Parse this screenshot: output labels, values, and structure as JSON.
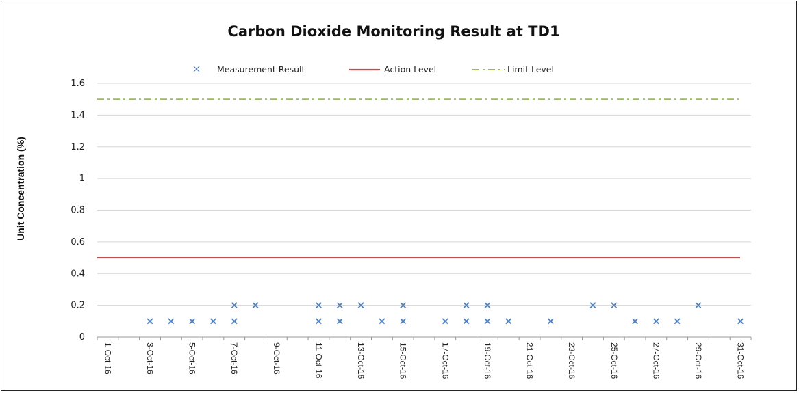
{
  "chart_data": {
    "type": "scatter",
    "title": "Carbon Dioxide Monitoring Result at TD1",
    "xlabel": "",
    "ylabel": "Unit Concentration (%)",
    "ylim": [
      0,
      1.6
    ],
    "yticks": [
      "0",
      "0.2",
      "0.4",
      "0.6",
      "0.8",
      "1",
      "1.2",
      "1.4",
      "1.6"
    ],
    "xlim": [
      "1-Oct-16",
      "31-Oct-16"
    ],
    "xticks": [
      "1-Oct-16",
      "3-Oct-16",
      "5-Oct-16",
      "7-Oct-16",
      "9-Oct-16",
      "11-Oct-16",
      "13-Oct-16",
      "15-Oct-16",
      "17-Oct-16",
      "19-Oct-16",
      "21-Oct-16",
      "23-Oct-16",
      "25-Oct-16",
      "27-Oct-16",
      "29-Oct-16",
      "31-Oct-16"
    ],
    "grid": "horizontal",
    "legend_position": "top",
    "series": [
      {
        "name": "Measurement Result",
        "kind": "scatter",
        "marker": "x",
        "color": "#4f81bd",
        "points": [
          {
            "x": "3-Oct-16",
            "y": 0.1
          },
          {
            "x": "4-Oct-16",
            "y": 0.1
          },
          {
            "x": "5-Oct-16",
            "y": 0.1
          },
          {
            "x": "6-Oct-16",
            "y": 0.1
          },
          {
            "x": "7-Oct-16",
            "y": 0.1
          },
          {
            "x": "7-Oct-16",
            "y": 0.2
          },
          {
            "x": "8-Oct-16",
            "y": 0.2
          },
          {
            "x": "11-Oct-16",
            "y": 0.1
          },
          {
            "x": "11-Oct-16",
            "y": 0.2
          },
          {
            "x": "12-Oct-16",
            "y": 0.1
          },
          {
            "x": "12-Oct-16",
            "y": 0.2
          },
          {
            "x": "13-Oct-16",
            "y": 0.2
          },
          {
            "x": "14-Oct-16",
            "y": 0.1
          },
          {
            "x": "15-Oct-16",
            "y": 0.1
          },
          {
            "x": "15-Oct-16",
            "y": 0.2
          },
          {
            "x": "17-Oct-16",
            "y": 0.1
          },
          {
            "x": "18-Oct-16",
            "y": 0.1
          },
          {
            "x": "18-Oct-16",
            "y": 0.2
          },
          {
            "x": "19-Oct-16",
            "y": 0.1
          },
          {
            "x": "19-Oct-16",
            "y": 0.2
          },
          {
            "x": "20-Oct-16",
            "y": 0.1
          },
          {
            "x": "22-Oct-16",
            "y": 0.1
          },
          {
            "x": "24-Oct-16",
            "y": 0.2
          },
          {
            "x": "25-Oct-16",
            "y": 0.2
          },
          {
            "x": "26-Oct-16",
            "y": 0.1
          },
          {
            "x": "27-Oct-16",
            "y": 0.1
          },
          {
            "x": "28-Oct-16",
            "y": 0.1
          },
          {
            "x": "29-Oct-16",
            "y": 0.2
          },
          {
            "x": "31-Oct-16",
            "y": 0.1
          }
        ]
      },
      {
        "name": "Action Level",
        "kind": "line",
        "style": "solid",
        "color": "#c0504d",
        "value": 0.5
      },
      {
        "name": "Limit Level",
        "kind": "line",
        "style": "dash-dot",
        "color": "#9bbb59",
        "value": 1.5
      }
    ]
  }
}
